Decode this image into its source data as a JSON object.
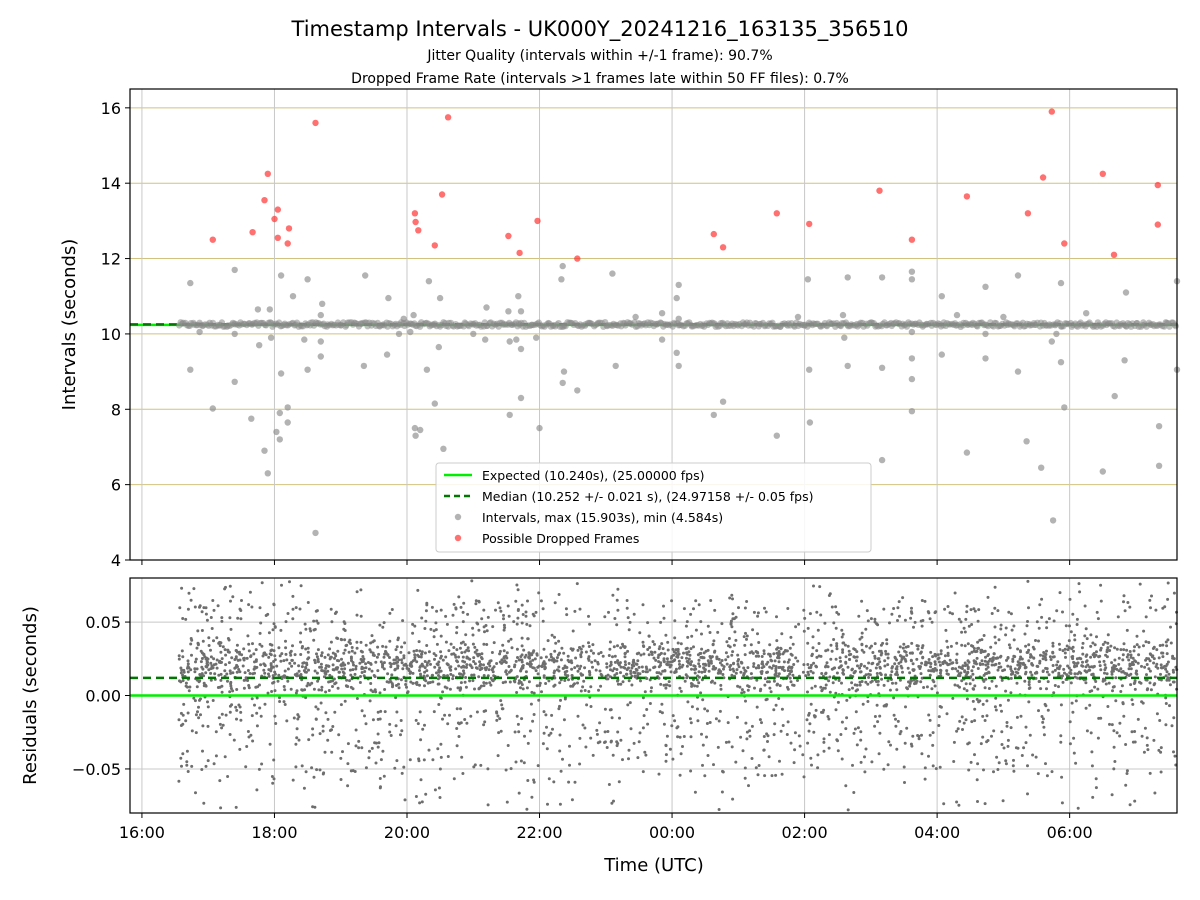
{
  "figure": {
    "title": "Timestamp Intervals - UK000Y_20241216_163135_356510",
    "subtitle_1": "Jitter Quality (intervals within +/-1 frame): 90.7%",
    "subtitle_2": "Dropped Frame Rate (intervals >1 frames late within 50 FF files): 0.7%",
    "x_axis_label": "Time (UTC)"
  },
  "colors": {
    "expected": "#00ee00",
    "median": "#007700",
    "intervals": "#8a8a8a",
    "dropped": "#ff3333",
    "residuals": "#6e6e6e",
    "hgrid_top": "#d2c27f",
    "grid": "#c8c8c8"
  },
  "chart_data": [
    {
      "type": "scatter",
      "ylabel": "Intervals (seconds)",
      "xlabel": "",
      "x_unit": "hours since 16:00 UTC",
      "xlim": [
        15.82,
        31.62
      ],
      "ylim": [
        4,
        16.5
      ],
      "x_ticks": [
        {
          "x": 16,
          "label": "16:00"
        },
        {
          "x": 18,
          "label": "18:00"
        },
        {
          "x": 20,
          "label": "20:00"
        },
        {
          "x": 22,
          "label": "22:00"
        },
        {
          "x": 24,
          "label": "00:00"
        },
        {
          "x": 26,
          "label": "02:00"
        },
        {
          "x": 28,
          "label": "04:00"
        },
        {
          "x": 30,
          "label": "06:00"
        }
      ],
      "y_ticks": [
        4,
        6,
        8,
        10,
        12,
        14,
        16
      ],
      "grid": true,
      "expected_value": 10.24,
      "median_value": 10.252,
      "legend_position": "lower-center",
      "legend": {
        "expected": "Expected (10.240s), (25.00000 fps)",
        "median": "Median (10.252 +/- 0.021 s), (24.97158 +/- 0.05 fps)",
        "intervals": "Intervals, max (15.903s), min (4.584s)",
        "dropped": "Possible Dropped Frames"
      },
      "series": [
        {
          "name": "Possible Dropped Frames",
          "points": [
            [
              17.07,
              12.5
            ],
            [
              17.67,
              12.7
            ],
            [
              17.9,
              14.25
            ],
            [
              17.85,
              13.55
            ],
            [
              18.0,
              13.05
            ],
            [
              18.05,
              13.3
            ],
            [
              18.05,
              12.55
            ],
            [
              18.2,
              12.4
            ],
            [
              18.22,
              12.8
            ],
            [
              18.62,
              15.6
            ],
            [
              20.12,
              13.2
            ],
            [
              20.13,
              12.97
            ],
            [
              20.17,
              12.75
            ],
            [
              20.42,
              12.35
            ],
            [
              20.53,
              13.7
            ],
            [
              20.62,
              15.75
            ],
            [
              21.53,
              12.6
            ],
            [
              21.7,
              12.15
            ],
            [
              21.97,
              13.0
            ],
            [
              22.57,
              12.0
            ],
            [
              24.63,
              12.65
            ],
            [
              24.77,
              12.3
            ],
            [
              25.58,
              13.2
            ],
            [
              26.07,
              12.92
            ],
            [
              27.13,
              13.8
            ],
            [
              27.62,
              12.5
            ],
            [
              28.45,
              13.65
            ],
            [
              29.37,
              13.2
            ],
            [
              29.6,
              14.15
            ],
            [
              29.73,
              15.9
            ],
            [
              29.92,
              12.4
            ],
            [
              30.5,
              14.25
            ],
            [
              30.67,
              12.1
            ],
            [
              31.33,
              13.95
            ],
            [
              31.33,
              12.9
            ]
          ]
        },
        {
          "name": "Intervals",
          "points": [
            [
              16.73,
              11.35
            ],
            [
              16.73,
              9.05
            ],
            [
              16.87,
              10.05
            ],
            [
              17.07,
              8.02
            ],
            [
              17.4,
              11.7
            ],
            [
              17.4,
              8.73
            ],
            [
              17.4,
              10.0
            ],
            [
              17.65,
              7.75
            ],
            [
              17.75,
              10.65
            ],
            [
              17.77,
              9.7
            ],
            [
              17.85,
              6.9
            ],
            [
              17.9,
              6.3
            ],
            [
              17.93,
              10.65
            ],
            [
              17.95,
              9.9
            ],
            [
              18.03,
              7.4
            ],
            [
              18.08,
              7.2
            ],
            [
              18.08,
              7.9
            ],
            [
              18.1,
              8.95
            ],
            [
              18.1,
              11.55
            ],
            [
              18.2,
              7.65
            ],
            [
              18.2,
              8.05
            ],
            [
              18.28,
              11.0
            ],
            [
              18.45,
              9.85
            ],
            [
              18.5,
              11.45
            ],
            [
              18.5,
              9.05
            ],
            [
              18.62,
              4.72
            ],
            [
              18.7,
              9.4
            ],
            [
              18.7,
              9.8
            ],
            [
              18.7,
              10.5
            ],
            [
              18.72,
              10.8
            ],
            [
              19.37,
              11.55
            ],
            [
              19.35,
              9.15
            ],
            [
              19.7,
              9.45
            ],
            [
              19.72,
              10.95
            ],
            [
              19.88,
              10.0
            ],
            [
              19.95,
              10.4
            ],
            [
              20.05,
              10.05
            ],
            [
              20.1,
              10.5
            ],
            [
              20.12,
              7.5
            ],
            [
              20.13,
              7.3
            ],
            [
              20.2,
              7.45
            ],
            [
              20.3,
              9.05
            ],
            [
              20.33,
              11.4
            ],
            [
              20.42,
              8.15
            ],
            [
              20.48,
              9.65
            ],
            [
              20.5,
              10.95
            ],
            [
              20.55,
              6.95
            ],
            [
              21.0,
              10.0
            ],
            [
              21.18,
              9.85
            ],
            [
              21.2,
              10.7
            ],
            [
              21.53,
              10.6
            ],
            [
              21.55,
              9.8
            ],
            [
              21.55,
              7.85
            ],
            [
              21.65,
              9.85
            ],
            [
              21.68,
              11.0
            ],
            [
              21.72,
              9.6
            ],
            [
              21.72,
              8.3
            ],
            [
              21.72,
              10.6
            ],
            [
              21.95,
              9.9
            ],
            [
              22.0,
              7.5
            ],
            [
              22.33,
              11.45
            ],
            [
              22.35,
              11.8
            ],
            [
              22.35,
              8.7
            ],
            [
              22.37,
              9.0
            ],
            [
              22.57,
              8.5
            ],
            [
              23.1,
              11.6
            ],
            [
              23.15,
              9.15
            ],
            [
              23.45,
              10.45
            ],
            [
              23.85,
              10.55
            ],
            [
              23.85,
              9.85
            ],
            [
              24.07,
              9.5
            ],
            [
              24.07,
              10.95
            ],
            [
              24.1,
              10.4
            ],
            [
              24.1,
              11.3
            ],
            [
              24.1,
              9.15
            ],
            [
              24.63,
              7.85
            ],
            [
              24.77,
              8.2
            ],
            [
              25.58,
              7.3
            ],
            [
              25.9,
              10.45
            ],
            [
              26.05,
              11.45
            ],
            [
              26.07,
              9.05
            ],
            [
              26.08,
              7.65
            ],
            [
              26.58,
              10.5
            ],
            [
              26.6,
              9.9
            ],
            [
              26.65,
              11.5
            ],
            [
              26.65,
              9.15
            ],
            [
              27.17,
              11.5
            ],
            [
              27.17,
              9.1
            ],
            [
              27.17,
              6.65
            ],
            [
              27.62,
              11.45
            ],
            [
              27.62,
              11.65
            ],
            [
              27.62,
              9.35
            ],
            [
              27.62,
              8.8
            ],
            [
              27.62,
              7.95
            ],
            [
              27.62,
              10.05
            ],
            [
              28.07,
              11.0
            ],
            [
              28.07,
              9.45
            ],
            [
              28.3,
              10.5
            ],
            [
              28.45,
              6.85
            ],
            [
              28.73,
              11.25
            ],
            [
              28.73,
              9.35
            ],
            [
              28.73,
              10.0
            ],
            [
              29.0,
              10.45
            ],
            [
              29.22,
              11.55
            ],
            [
              29.22,
              9.0
            ],
            [
              29.35,
              7.15
            ],
            [
              29.57,
              6.45
            ],
            [
              29.73,
              9.8
            ],
            [
              29.75,
              5.05
            ],
            [
              29.8,
              10.0
            ],
            [
              29.87,
              11.35
            ],
            [
              29.87,
              9.25
            ],
            [
              29.92,
              8.05
            ],
            [
              30.25,
              10.55
            ],
            [
              30.5,
              6.35
            ],
            [
              30.68,
              8.35
            ],
            [
              30.83,
              9.3
            ],
            [
              30.85,
              11.1
            ],
            [
              31.35,
              7.55
            ],
            [
              31.35,
              6.5
            ],
            [
              31.62,
              11.4
            ],
            [
              31.62,
              9.05
            ]
          ]
        }
      ]
    },
    {
      "type": "scatter",
      "ylabel": "Residuals (seconds)",
      "xlabel": "Time (UTC)",
      "x_unit": "hours since 16:00 UTC",
      "xlim": [
        15.82,
        31.62
      ],
      "ylim": [
        -0.08,
        0.08
      ],
      "x_ticks": [
        {
          "x": 16,
          "label": "16:00"
        },
        {
          "x": 18,
          "label": "18:00"
        },
        {
          "x": 20,
          "label": "20:00"
        },
        {
          "x": 22,
          "label": "22:00"
        },
        {
          "x": 24,
          "label": "00:00"
        },
        {
          "x": 26,
          "label": "02:00"
        },
        {
          "x": 28,
          "label": "04:00"
        },
        {
          "x": 30,
          "label": "06:00"
        }
      ],
      "y_ticks": [
        {
          "y": 0.05,
          "label": "0.05"
        },
        {
          "y": 0.0,
          "label": "0.00"
        },
        {
          "y": -0.05,
          "label": "−0.05"
        }
      ],
      "grid": true,
      "expected_residual": 0.0,
      "median_residual": 0.012,
      "residual_time_range": [
        16.55,
        31.62
      ],
      "residual_core_range": [
        0.0,
        0.04
      ],
      "residual_spread_range": [
        -0.078,
        0.08
      ]
    }
  ]
}
